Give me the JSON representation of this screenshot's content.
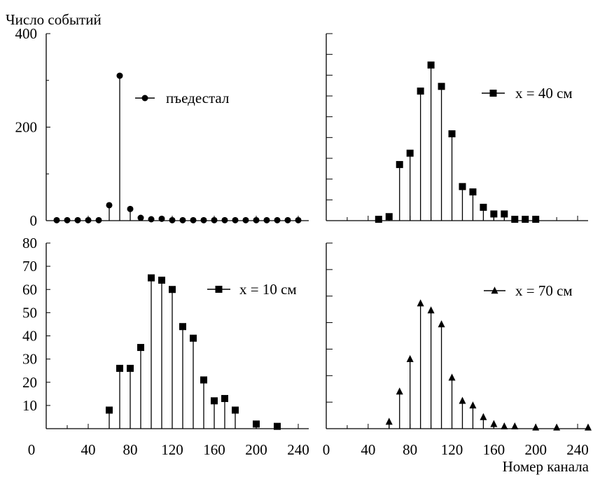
{
  "figure": {
    "ylabel": "Число событий",
    "xlabel": "Номер канала",
    "x_tick_labels": [
      "0",
      "40",
      "80",
      "120",
      "160",
      "200",
      "240"
    ]
  },
  "chart_data": [
    {
      "type": "scatter",
      "panel": "top-left",
      "style": "stem",
      "marker": "circle",
      "legend": "top-right",
      "xlim": [
        0,
        250
      ],
      "ylim": [
        0,
        400
      ],
      "y_tick_labels": [
        "0",
        "200",
        "400"
      ],
      "series": [
        {
          "name": "пъедестал",
          "x": [
            10,
            20,
            30,
            40,
            50,
            60,
            70,
            80,
            90,
            100,
            110,
            120,
            130,
            140,
            150,
            160,
            170,
            180,
            190,
            200,
            210,
            220,
            230,
            240
          ],
          "y": [
            1,
            1,
            1,
            1,
            1,
            33,
            310,
            25,
            6,
            3,
            4,
            1,
            1,
            1,
            1,
            1,
            1,
            1,
            1,
            1,
            1,
            1,
            1,
            1
          ]
        }
      ]
    },
    {
      "type": "scatter",
      "panel": "top-right",
      "style": "stem",
      "marker": "square",
      "legend": "top-right",
      "xlim": [
        0,
        250
      ],
      "ylim": [
        0,
        280
      ],
      "y_tick_labels": [],
      "series": [
        {
          "name": "x = 40 см",
          "x": [
            50,
            60,
            70,
            80,
            90,
            100,
            110,
            120,
            130,
            140,
            150,
            160,
            170,
            180,
            190,
            200
          ],
          "y": [
            2,
            6,
            84,
            101,
            194,
            233,
            201,
            130,
            51,
            43,
            20,
            10,
            10,
            2,
            2,
            2
          ]
        }
      ]
    },
    {
      "type": "scatter",
      "panel": "bottom-left",
      "style": "stem",
      "marker": "square",
      "legend": "top-right",
      "xlim": [
        0,
        250
      ],
      "ylim": [
        0,
        80
      ],
      "y_tick_labels": [
        "10",
        "20",
        "30",
        "40",
        "50",
        "60",
        "70",
        "80"
      ],
      "series": [
        {
          "name": "x = 10 см",
          "x": [
            60,
            70,
            80,
            90,
            100,
            110,
            120,
            130,
            140,
            150,
            160,
            170,
            180,
            200,
            220
          ],
          "y": [
            8,
            26,
            26,
            35,
            65,
            64,
            60,
            44,
            39,
            21,
            12,
            13,
            8,
            2,
            1
          ]
        }
      ]
    },
    {
      "type": "scatter",
      "panel": "bottom-right",
      "style": "stem",
      "marker": "triangle",
      "legend": "top-right",
      "xlim": [
        0,
        250
      ],
      "ylim": [
        0,
        80
      ],
      "y_tick_labels": [],
      "series": [
        {
          "name": "x = 70 см",
          "x": [
            60,
            70,
            80,
            90,
            100,
            110,
            120,
            130,
            140,
            150,
            160,
            170,
            180,
            200,
            220,
            250
          ],
          "y": [
            3,
            16,
            30,
            54,
            51,
            45,
            22,
            12,
            10,
            5,
            2,
            1,
            1,
            0.5,
            0.5,
            0.5
          ]
        }
      ]
    }
  ]
}
